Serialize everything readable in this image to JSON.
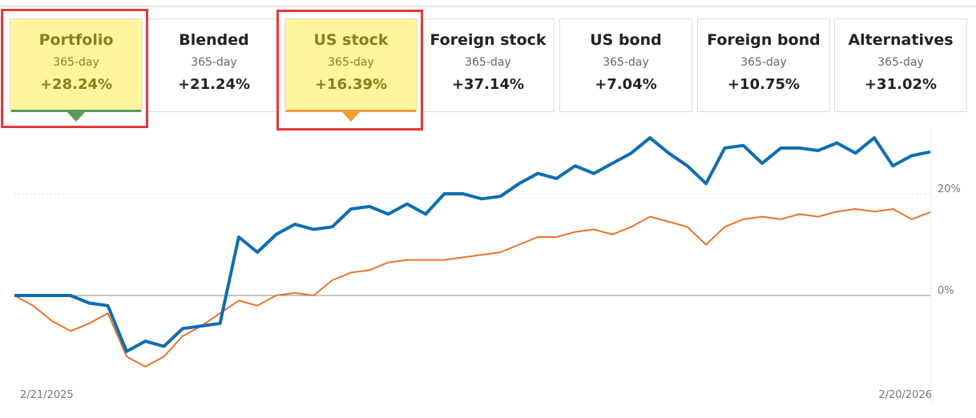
{
  "tabs": [
    {
      "name": "Portfolio",
      "period": "365-day",
      "change": "+28.24%"
    },
    {
      "name": "Blended",
      "period": "365-day",
      "change": "+21.24%"
    },
    {
      "name": "US stock",
      "period": "365-day",
      "change": "+16.39%"
    },
    {
      "name": "Foreign stock",
      "period": "365-day",
      "change": "+37.14%"
    },
    {
      "name": "US bond",
      "period": "365-day",
      "change": "+7.04%"
    },
    {
      "name": "Foreign bond",
      "period": "365-day",
      "change": "+10.75%"
    },
    {
      "name": "Alternatives",
      "period": "365-day",
      "change": "+31.02%"
    }
  ],
  "chart_data": {
    "type": "line",
    "categories": [
      "2/21/2025",
      null,
      null,
      null,
      null,
      null,
      null,
      null,
      null,
      null,
      null,
      null,
      null,
      null,
      null,
      null,
      null,
      null,
      null,
      null,
      null,
      null,
      null,
      null,
      null,
      null,
      null,
      null,
      null,
      null,
      null,
      null,
      null,
      null,
      null,
      null,
      null,
      null,
      null,
      null,
      null,
      null,
      null,
      null,
      null,
      null,
      null,
      null,
      null,
      "2/20/2026"
    ],
    "series": [
      {
        "name": "Portfolio",
        "color": "#0e6eb0",
        "values": [
          0,
          0,
          0,
          0,
          -1.5,
          -2,
          -11,
          -9,
          -10,
          -6.5,
          -6,
          -5.5,
          11.5,
          8.5,
          12,
          14,
          13,
          13.5,
          17,
          17.5,
          16,
          18,
          16,
          20,
          20,
          19,
          19.5,
          22,
          24,
          23,
          25.5,
          24,
          26,
          28,
          31,
          28,
          25.5,
          22,
          29,
          29.5,
          26,
          29,
          29,
          28.5,
          30,
          28,
          31,
          25.5,
          27.5,
          28.24
        ]
      },
      {
        "name": "US stock",
        "color": "#e8742c",
        "values": [
          0,
          -2,
          -5,
          -7,
          -5.5,
          -3.5,
          -12,
          -14,
          -12,
          -8,
          -6,
          -3.5,
          -1,
          -2,
          0,
          0.5,
          0,
          3,
          4.5,
          5,
          6.5,
          7,
          7,
          7,
          7.5,
          8,
          8.5,
          10,
          11.5,
          11.5,
          12.5,
          13,
          12,
          13.5,
          15.5,
          14.5,
          13.5,
          10,
          13.5,
          15,
          15.5,
          15,
          16,
          15.5,
          16.5,
          17,
          16.5,
          17,
          15,
          16.39
        ]
      }
    ],
    "ylim": [
      -18,
      33
    ],
    "yticks": [
      {
        "value": 0,
        "label": "0%"
      },
      {
        "value": 20,
        "label": "20%"
      }
    ]
  }
}
